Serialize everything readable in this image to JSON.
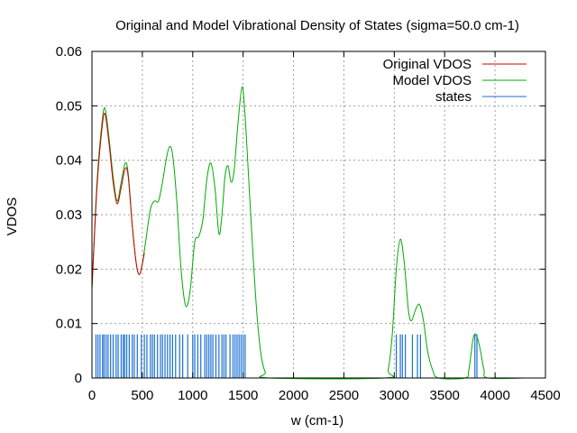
{
  "chart_data": {
    "type": "line",
    "title": "Original and Model Vibrational Density of States (sigma=50.0 cm-1)",
    "xlabel": "w (cm-1)",
    "ylabel": "VDOS",
    "xlim": [
      0,
      4500
    ],
    "ylim": [
      0,
      0.06
    ],
    "x_ticks": [
      0,
      500,
      1000,
      1500,
      2000,
      2500,
      3000,
      3500,
      4000,
      4500
    ],
    "y_ticks": [
      0,
      0.01,
      0.02,
      0.03,
      0.04,
      0.05,
      0.06
    ],
    "x_tick_labels": [
      "0",
      "500",
      "1000",
      "1500",
      "2000",
      "2500",
      "3000",
      "3500",
      "4000",
      "4500"
    ],
    "y_tick_labels": [
      "0",
      "0.01",
      "0.02",
      "0.03",
      "0.04",
      "0.05",
      "0.06"
    ],
    "grid": true,
    "legend_position": "top-right",
    "series": [
      {
        "name": "Original VDOS",
        "color": "#cc0000",
        "style": "line",
        "points": [
          [
            0,
            0.0165
          ],
          [
            50,
            0.035
          ],
          [
            100,
            0.046
          ],
          [
            130,
            0.0485
          ],
          [
            170,
            0.043
          ],
          [
            210,
            0.036
          ],
          [
            250,
            0.032
          ],
          [
            290,
            0.035
          ],
          [
            330,
            0.0385
          ],
          [
            360,
            0.037
          ],
          [
            400,
            0.028
          ],
          [
            440,
            0.021
          ],
          [
            470,
            0.019
          ],
          [
            500,
            0.021
          ],
          [
            520,
            0.023
          ]
        ]
      },
      {
        "name": "Model VDOS",
        "color": "#00aa00",
        "style": "line",
        "points": [
          [
            0,
            0.0165
          ],
          [
            50,
            0.036
          ],
          [
            100,
            0.047
          ],
          [
            130,
            0.0495
          ],
          [
            170,
            0.044
          ],
          [
            210,
            0.037
          ],
          [
            250,
            0.0325
          ],
          [
            290,
            0.036
          ],
          [
            330,
            0.0395
          ],
          [
            360,
            0.0375
          ],
          [
            400,
            0.028
          ],
          [
            440,
            0.021
          ],
          [
            470,
            0.019
          ],
          [
            500,
            0.021
          ],
          [
            540,
            0.026
          ],
          [
            580,
            0.031
          ],
          [
            620,
            0.0325
          ],
          [
            660,
            0.0325
          ],
          [
            700,
            0.036
          ],
          [
            740,
            0.0405
          ],
          [
            770,
            0.0425
          ],
          [
            800,
            0.041
          ],
          [
            840,
            0.033
          ],
          [
            880,
            0.021
          ],
          [
            920,
            0.014
          ],
          [
            950,
            0.0135
          ],
          [
            980,
            0.017
          ],
          [
            1020,
            0.025
          ],
          [
            1060,
            0.026
          ],
          [
            1100,
            0.029
          ],
          [
            1140,
            0.0365
          ],
          [
            1180,
            0.0395
          ],
          [
            1220,
            0.035
          ],
          [
            1260,
            0.0265
          ],
          [
            1290,
            0.03
          ],
          [
            1320,
            0.037
          ],
          [
            1350,
            0.039
          ],
          [
            1380,
            0.036
          ],
          [
            1410,
            0.038
          ],
          [
            1450,
            0.047
          ],
          [
            1490,
            0.0535
          ],
          [
            1520,
            0.048
          ],
          [
            1560,
            0.035
          ],
          [
            1600,
            0.022
          ],
          [
            1640,
            0.011
          ],
          [
            1680,
            0.004
          ],
          [
            1720,
            0.001
          ],
          [
            1760,
            0.0
          ],
          [
            2900,
            0.0
          ],
          [
            2940,
            0.0015
          ],
          [
            2980,
            0.008
          ],
          [
            3020,
            0.02
          ],
          [
            3060,
            0.0255
          ],
          [
            3100,
            0.021
          ],
          [
            3140,
            0.0125
          ],
          [
            3170,
            0.0105
          ],
          [
            3210,
            0.0125
          ],
          [
            3250,
            0.0135
          ],
          [
            3290,
            0.0105
          ],
          [
            3330,
            0.005
          ],
          [
            3380,
            0.0015
          ],
          [
            3440,
            0.0
          ],
          [
            3700,
            0.0
          ],
          [
            3740,
            0.0015
          ],
          [
            3780,
            0.007
          ],
          [
            3810,
            0.008
          ],
          [
            3850,
            0.0055
          ],
          [
            3890,
            0.0015
          ],
          [
            3930,
            0.0
          ],
          [
            4300,
            0.0
          ]
        ]
      },
      {
        "name": "states",
        "color": "#1a6fd4",
        "style": "impulse",
        "height": 0.008,
        "x": [
          40,
          60,
          80,
          105,
          120,
          140,
          160,
          185,
          210,
          240,
          260,
          290,
          310,
          325,
          345,
          370,
          400,
          420,
          450,
          490,
          520,
          545,
          580,
          600,
          620,
          650,
          680,
          700,
          725,
          750,
          775,
          800,
          830,
          870,
          900,
          950,
          1000,
          1020,
          1050,
          1080,
          1120,
          1140,
          1160,
          1180,
          1200,
          1230,
          1260,
          1290,
          1310,
          1330,
          1370,
          1400,
          1420,
          1440,
          1460,
          1480,
          1500,
          1520,
          3020,
          3060,
          3080,
          3110,
          3180,
          3230,
          3260,
          3800,
          3820
        ]
      }
    ]
  }
}
